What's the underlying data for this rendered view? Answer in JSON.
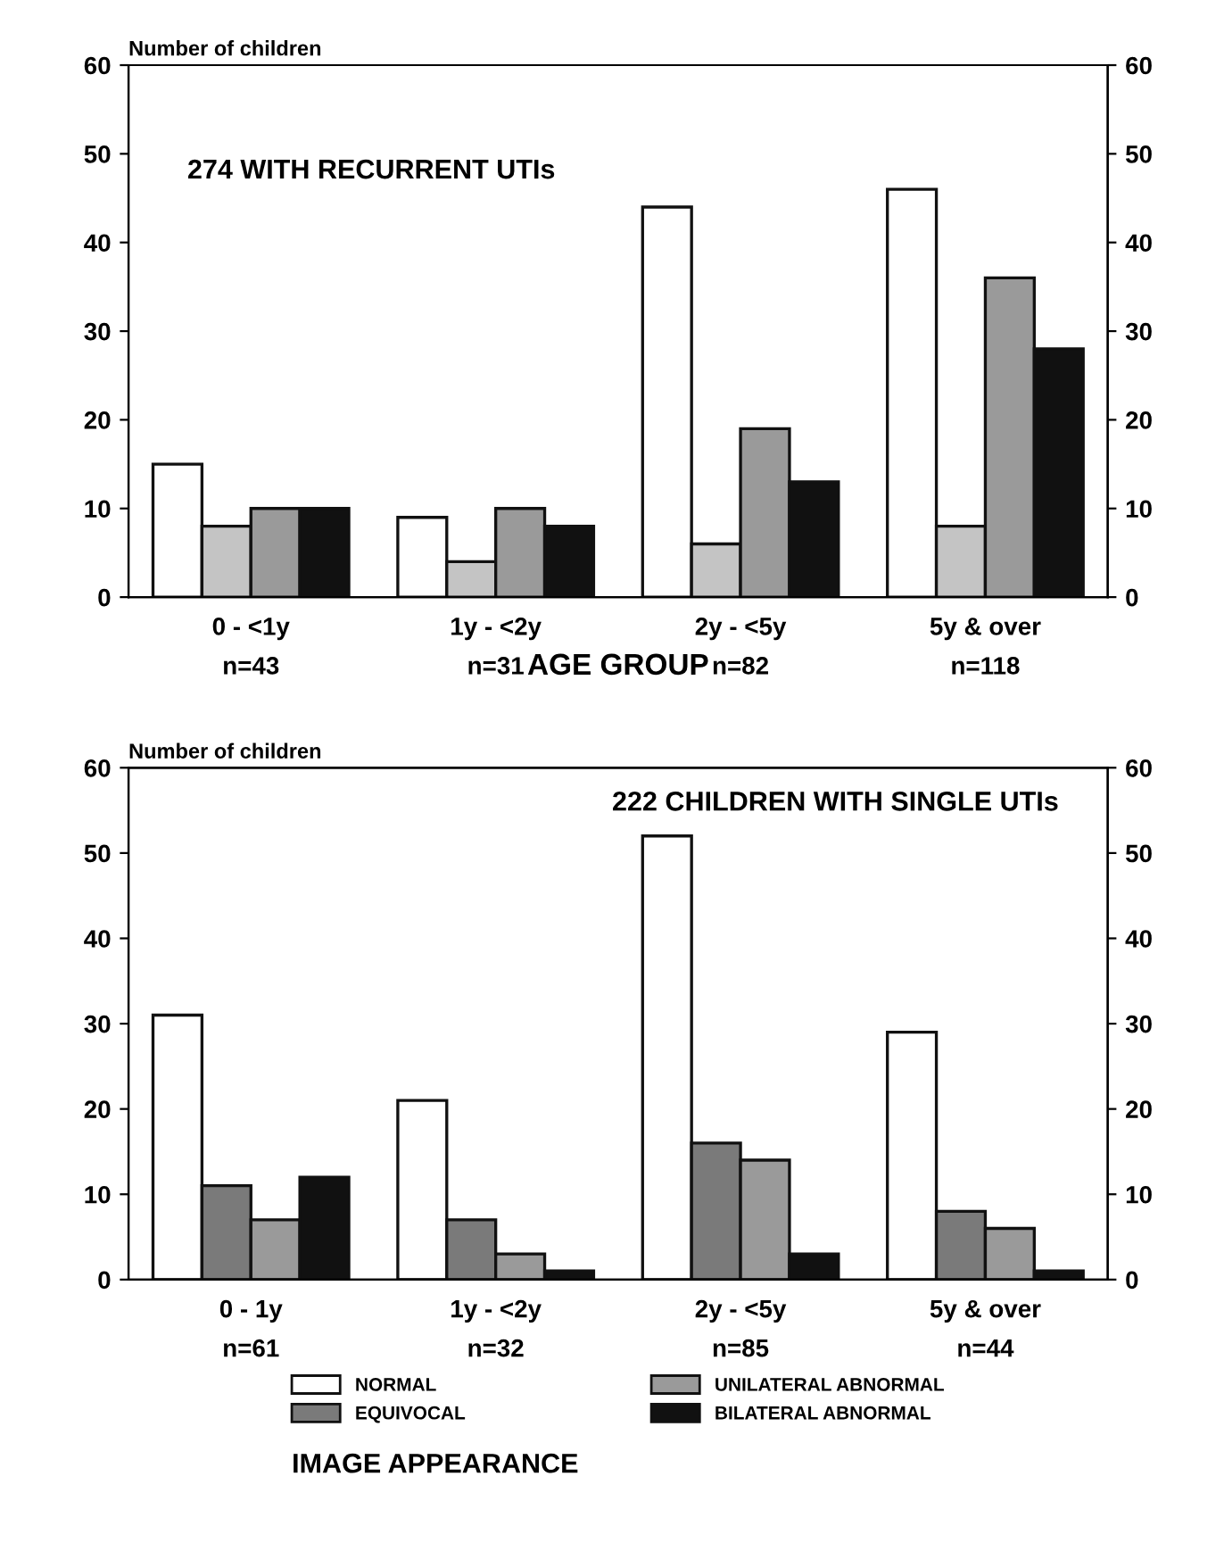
{
  "chart_data": [
    {
      "type": "bar",
      "ylabel": "Number of children",
      "xlabel": "AGE GROUP",
      "annotations": [
        "274 WITH RECURRENT UTIs"
      ],
      "categories": [
        "0 - <1y\nn=43",
        "1y - <2y\nn=31",
        "2y - <5y\nn=82",
        "5y & over\nn=118"
      ],
      "series": [
        {
          "color": "#ffffff",
          "values": [
            15,
            9,
            44,
            46
          ]
        },
        {
          "color": "#c4c4c4",
          "values": [
            8,
            4,
            6,
            8
          ]
        },
        {
          "color": "#9a9a9a",
          "values": [
            10,
            10,
            19,
            36
          ]
        },
        {
          "color": "#111111",
          "values": [
            10,
            8,
            13,
            28
          ]
        }
      ],
      "ylim": [
        0,
        60
      ],
      "yticks": [
        0,
        10,
        20,
        30,
        40,
        50,
        60
      ],
      "y2lim": [
        0,
        60
      ],
      "y2ticks": [
        0,
        10,
        20,
        30,
        40,
        50,
        60
      ],
      "grid": false,
      "legend": false
    },
    {
      "type": "bar",
      "ylabel": "Number of children",
      "legend_title": "IMAGE APPEARANCE",
      "annotations": [
        "222 CHILDREN WITH SINGLE UTIs"
      ],
      "categories": [
        "0 - 1y\nn=61",
        "1y - <2y\nn=32",
        "2y - <5y\nn=85",
        "5y & over\nn=44"
      ],
      "series": [
        {
          "name": "NORMAL",
          "color": "#ffffff",
          "values": [
            31,
            21,
            52,
            29
          ]
        },
        {
          "name": "EQUIVOCAL",
          "color": "#7a7a7a",
          "values": [
            11,
            7,
            16,
            8
          ]
        },
        {
          "name": "UNILATERAL ABNORMAL",
          "color": "#9a9a9a",
          "values": [
            7,
            3,
            14,
            6
          ]
        },
        {
          "name": "BILATERAL ABNORMAL",
          "color": "#111111",
          "values": [
            12,
            1,
            3,
            1
          ]
        }
      ],
      "ylim": [
        0,
        60
      ],
      "yticks": [
        0,
        10,
        20,
        30,
        40,
        50,
        60
      ],
      "y2lim": [
        0,
        60
      ],
      "y2ticks": [
        0,
        10,
        20,
        30,
        40,
        50,
        60
      ],
      "grid": false,
      "legend": "bottom"
    }
  ]
}
